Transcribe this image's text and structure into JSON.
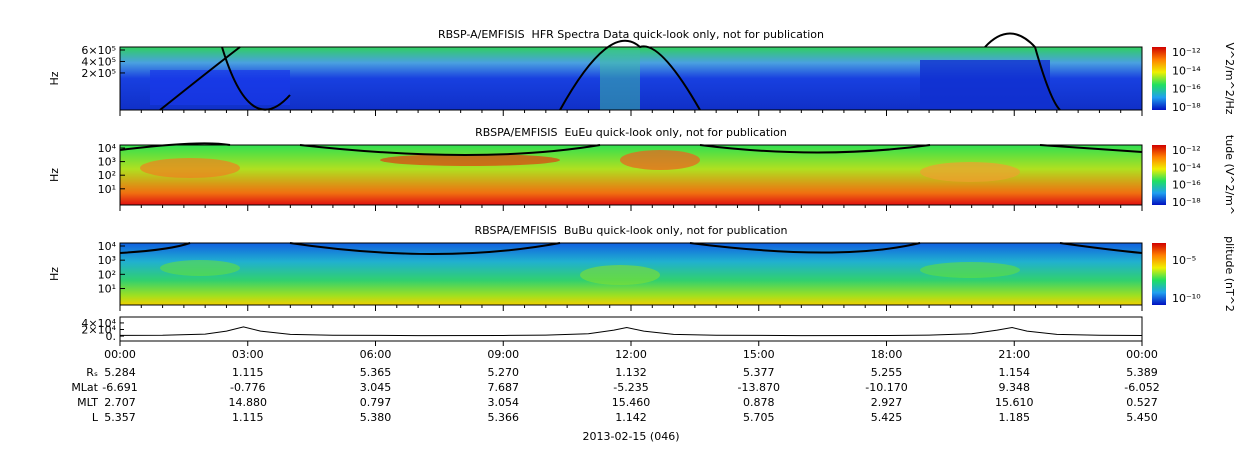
{
  "panels": [
    {
      "title": "RBSP-A/EMFISIS  HFR Spectra Data quick-look only, not for publication",
      "ylabel": "Hz",
      "yticks": [
        "6×10⁵",
        "4×10⁵",
        "2×10⁵"
      ],
      "colorbar_label": "V^2/m^2/Hz",
      "colorbar_ticks": [
        "10⁻¹²",
        "10⁻¹⁴",
        "10⁻¹⁶",
        "10⁻¹⁸"
      ]
    },
    {
      "title": "RBSPA/EMFISIS  EuEu quick-look only, not for publication",
      "ylabel": "Hz",
      "yticks": [
        "10⁴",
        "10³",
        "10²",
        "10¹"
      ],
      "colorbar_label": "tude (V^2/m^",
      "colorbar_ticks": [
        "10⁻¹²",
        "10⁻¹⁴",
        "10⁻¹⁶",
        "10⁻¹⁸"
      ]
    },
    {
      "title": "RBSPA/EMFISIS  BuBu quick-look only, not for publication",
      "ylabel": "Hz",
      "yticks": [
        "10⁴",
        "10³",
        "10²",
        "10¹"
      ],
      "colorbar_label": "plitude (nT^2",
      "colorbar_ticks": [
        "10⁻⁵",
        "10⁻¹⁰"
      ]
    }
  ],
  "orbit": {
    "type": "line",
    "xlim": [
      0,
      24
    ],
    "ylim": [
      -15000,
      58000
    ],
    "yticks": [
      {
        "value": 40000,
        "label": "4×10⁴"
      },
      {
        "value": 20000,
        "label": "2×10⁴"
      },
      {
        "value": 0,
        "label": "0."
      }
    ],
    "x": [
      0,
      1,
      2,
      2.5,
      2.9,
      3.3,
      4,
      5,
      7,
      9,
      10,
      11,
      11.6,
      11.9,
      12.3,
      13,
      14,
      16,
      18,
      19,
      20,
      20.6,
      20.95,
      21.3,
      22,
      23,
      24
    ],
    "values": [
      2000,
      2500,
      6000,
      15000,
      28000,
      15000,
      5000,
      2500,
      1500,
      1800,
      3000,
      7000,
      18000,
      26000,
      15000,
      5000,
      2500,
      1500,
      1800,
      3000,
      7000,
      18000,
      26000,
      15000,
      5000,
      2500,
      1800
    ]
  },
  "time_axis": {
    "ticks": [
      "00:00",
      "03:00",
      "06:00",
      "09:00",
      "12:00",
      "15:00",
      "18:00",
      "21:00",
      "00:00"
    ],
    "rows": [
      {
        "label": "Rₛ",
        "values": [
          "5.284",
          "1.115",
          "5.365",
          "5.270",
          "1.132",
          "5.377",
          "5.255",
          "1.154",
          "5.389"
        ]
      },
      {
        "label": "MLat",
        "values": [
          "-6.691",
          "-0.776",
          "3.045",
          "7.687",
          "-5.235",
          "-13.870",
          "-10.170",
          "9.348",
          "-6.052"
        ]
      },
      {
        "label": "MLT",
        "values": [
          "2.707",
          "14.880",
          "0.797",
          "3.054",
          "15.460",
          "0.878",
          "2.927",
          "15.610",
          "0.527"
        ]
      },
      {
        "label": "L",
        "values": [
          "5.357",
          "1.115",
          "5.380",
          "5.366",
          "1.142",
          "5.705",
          "5.425",
          "1.185",
          "5.450"
        ]
      }
    ],
    "date": "2013-02-15 (046)"
  }
}
